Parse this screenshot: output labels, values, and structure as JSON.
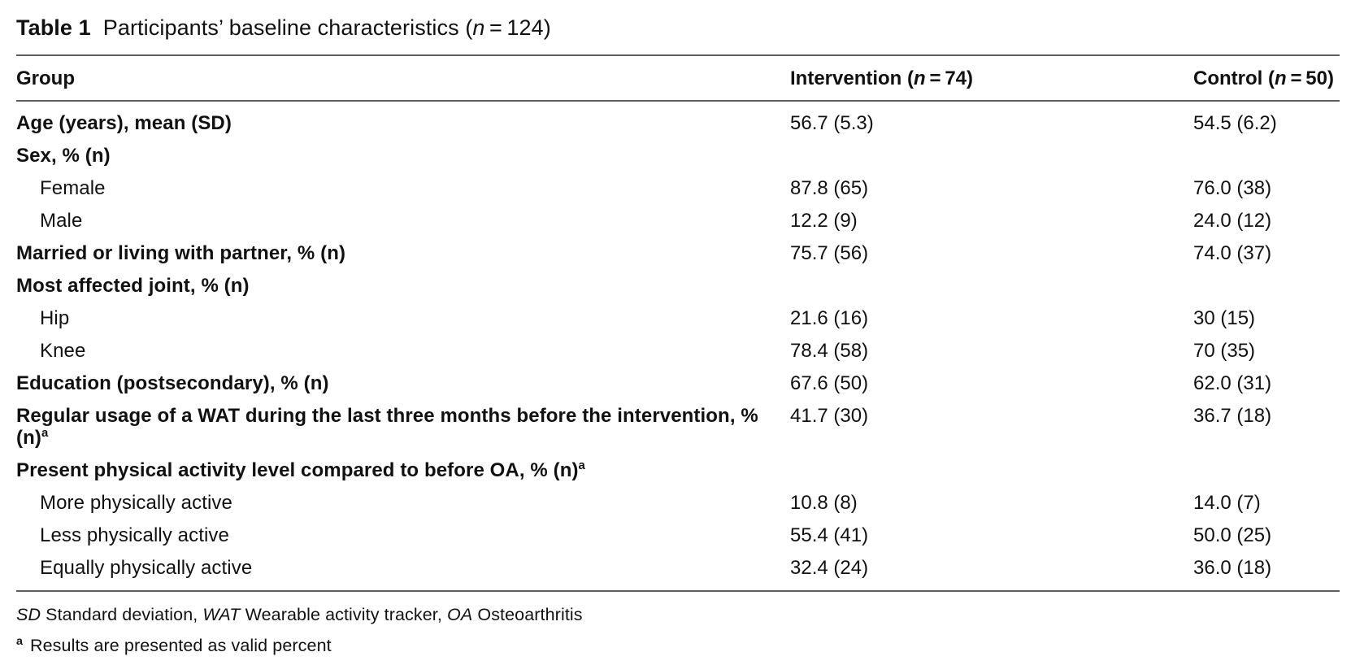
{
  "title": {
    "label": "Table 1",
    "text_pre": "Participants’ baseline characteristics (",
    "n": "n",
    "text_post": " = 124)"
  },
  "table": {
    "columns": [
      {
        "label": "Group"
      },
      {
        "prefix": "Intervention (",
        "n": "n",
        "suffix": " = 74)"
      },
      {
        "prefix": "Control (",
        "n": "n",
        "suffix": " = 50)"
      }
    ],
    "rows": [
      {
        "label": "Age (years), mean (SD)",
        "style": "bold",
        "intervention": "56.7 (5.3)",
        "control": "54.5 (6.2)"
      },
      {
        "label": "Sex, % (n)",
        "style": "bold",
        "intervention": "",
        "control": ""
      },
      {
        "label": "Female",
        "style": "indent",
        "intervention": "87.8 (65)",
        "control": "76.0 (38)"
      },
      {
        "label": "Male",
        "style": "indent",
        "intervention": "12.2 (9)",
        "control": "24.0 (12)"
      },
      {
        "label": "Married or living with partner, % (n)",
        "style": "bold",
        "intervention": "75.7 (56)",
        "control": "74.0 (37)"
      },
      {
        "label": "Most affected joint, % (n)",
        "style": "bold",
        "intervention": "",
        "control": ""
      },
      {
        "label": "Hip",
        "style": "indent",
        "intervention": "21.6 (16)",
        "control": "30 (15)"
      },
      {
        "label": "Knee",
        "style": "indent",
        "intervention": "78.4 (58)",
        "control": "70 (35)"
      },
      {
        "label": "Education (postsecondary), % (n)",
        "style": "bold",
        "intervention": "67.6 (50)",
        "control": "62.0 (31)"
      },
      {
        "label": "Regular usage of a WAT during the last three months before the intervention, % (n)",
        "sup": "a",
        "style": "bold",
        "intervention": "41.7 (30)",
        "control": "36.7 (18)"
      },
      {
        "label": "Present physical activity level compared to before OA, % (n)",
        "sup": "a",
        "style": "bold",
        "intervention": "",
        "control": ""
      },
      {
        "label": "More physically active",
        "style": "indent",
        "intervention": "10.8 (8)",
        "control": "14.0 (7)"
      },
      {
        "label": "Less physically active",
        "style": "indent",
        "intervention": "55.4 (41)",
        "control": "50.0 (25)"
      },
      {
        "label": "Equally physically active",
        "style": "indent",
        "intervention": "32.4 (24)",
        "control": "36.0 (18)"
      }
    ]
  },
  "footnotes": {
    "abbr": {
      "sd": "SD",
      "sd_text": " Standard deviation, ",
      "wat": "WAT",
      "wat_text": " Wearable activity tracker, ",
      "oa": "OA",
      "oa_text": " Osteoarthritis"
    },
    "note_a": {
      "sup": "a",
      "text": "Results are presented as valid percent"
    }
  }
}
